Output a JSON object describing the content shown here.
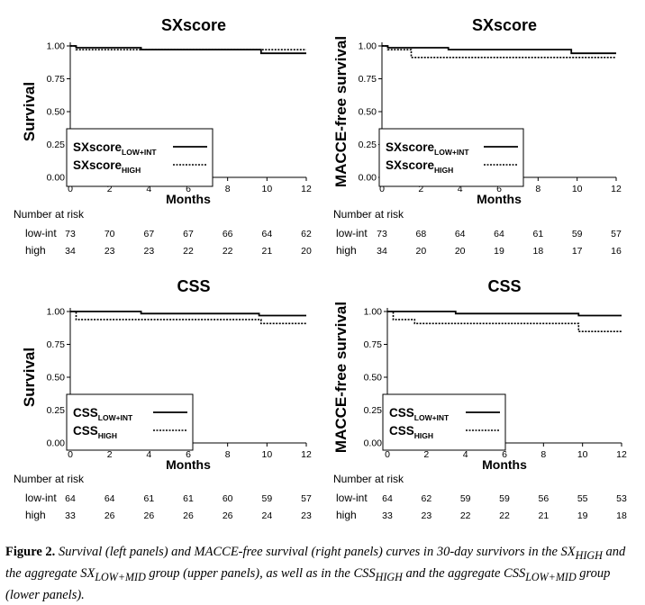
{
  "chart_data": [
    {
      "type": "line",
      "title": "SXscore",
      "ylabel": "Survival",
      "xlabel": "Months",
      "xlim": [
        0,
        12
      ],
      "ylim": [
        0,
        1
      ],
      "xticks": [
        "0",
        "2",
        "4",
        "6",
        "8",
        "10",
        "12"
      ],
      "yticks": [
        "0.00",
        "0.25",
        "0.50",
        "0.75",
        "1.00"
      ],
      "legend_position": "bottom-left",
      "series": [
        {
          "name": "SXscore",
          "sub": "LOW+INT",
          "style": "solid",
          "x": [
            0,
            0.3,
            0.3,
            3.6,
            3.6,
            9.7,
            9.7,
            12
          ],
          "y": [
            1.0,
            1.0,
            0.986,
            0.986,
            0.972,
            0.972,
            0.944,
            0.944
          ]
        },
        {
          "name": "SXscore",
          "sub": "HIGH",
          "style": "dotted",
          "x": [
            0,
            0.3,
            0.3,
            12
          ],
          "y": [
            1.0,
            1.0,
            0.971,
            0.971
          ]
        }
      ],
      "risk_table": {
        "header": "Number at risk",
        "rows": [
          {
            "label": "low-int",
            "values": [
              "73",
              "70",
              "67",
              "67",
              "66",
              "64",
              "62"
            ]
          },
          {
            "label": "high",
            "values": [
              "34",
              "23",
              "23",
              "22",
              "22",
              "21",
              "20"
            ]
          }
        ]
      }
    },
    {
      "type": "line",
      "title": "SXscore",
      "ylabel": "MACCE-free survival",
      "xlabel": "Months",
      "xlim": [
        0,
        12
      ],
      "ylim": [
        0,
        1
      ],
      "xticks": [
        "0",
        "2",
        "4",
        "6",
        "8",
        "10",
        "12"
      ],
      "yticks": [
        "0.00",
        "0.25",
        "0.50",
        "0.75",
        "1.00"
      ],
      "legend_position": "bottom-left",
      "series": [
        {
          "name": "SXscore",
          "sub": "LOW+INT",
          "style": "solid",
          "x": [
            0,
            0.3,
            0.3,
            3.4,
            3.4,
            9.7,
            9.7,
            12
          ],
          "y": [
            1.0,
            1.0,
            0.986,
            0.986,
            0.972,
            0.972,
            0.944,
            0.944
          ]
        },
        {
          "name": "SXscore",
          "sub": "HIGH",
          "style": "dotted",
          "x": [
            0,
            0.3,
            0.3,
            1.5,
            1.5,
            12
          ],
          "y": [
            1.0,
            1.0,
            0.971,
            0.971,
            0.912,
            0.912
          ]
        }
      ],
      "risk_table": {
        "header": "Number at risk",
        "rows": [
          {
            "label": "low-int",
            "values": [
              "73",
              "68",
              "64",
              "64",
              "61",
              "59",
              "57"
            ]
          },
          {
            "label": "high",
            "values": [
              "34",
              "20",
              "20",
              "19",
              "18",
              "17",
              "16"
            ]
          }
        ]
      }
    },
    {
      "type": "line",
      "title": "CSS",
      "ylabel": "Survival",
      "xlabel": "Months",
      "xlim": [
        0,
        12
      ],
      "ylim": [
        0,
        1
      ],
      "xticks": [
        "0",
        "2",
        "4",
        "6",
        "8",
        "10",
        "12"
      ],
      "yticks": [
        "0.00",
        "0.25",
        "0.50",
        "0.75",
        "1.00"
      ],
      "legend_position": "bottom-left",
      "series": [
        {
          "name": "CSS",
          "sub": "LOW+INT",
          "style": "solid",
          "x": [
            0,
            3.6,
            3.6,
            9.6,
            9.6,
            12
          ],
          "y": [
            1.0,
            1.0,
            0.984,
            0.984,
            0.969,
            0.969
          ]
        },
        {
          "name": "CSS",
          "sub": "HIGH",
          "style": "dotted",
          "x": [
            0,
            0.3,
            0.3,
            9.7,
            9.7,
            12
          ],
          "y": [
            1.0,
            1.0,
            0.939,
            0.939,
            0.909,
            0.909
          ]
        }
      ],
      "risk_table": {
        "header": "Number at risk",
        "rows": [
          {
            "label": "low-int",
            "values": [
              "64",
              "64",
              "61",
              "61",
              "60",
              "59",
              "57"
            ]
          },
          {
            "label": "high",
            "values": [
              "33",
              "26",
              "26",
              "26",
              "26",
              "24",
              "23"
            ]
          }
        ]
      }
    },
    {
      "type": "line",
      "title": "CSS",
      "ylabel": "MACCE-free survival",
      "xlabel": "Months",
      "xlim": [
        0,
        12
      ],
      "ylim": [
        0,
        1
      ],
      "xticks": [
        "0",
        "2",
        "4",
        "6",
        "8",
        "10",
        "12"
      ],
      "yticks": [
        "0.00",
        "0.25",
        "0.50",
        "0.75",
        "1.00"
      ],
      "legend_position": "bottom-left",
      "series": [
        {
          "name": "CSS",
          "sub": "LOW+INT",
          "style": "solid",
          "x": [
            0,
            3.5,
            3.5,
            9.8,
            9.8,
            12
          ],
          "y": [
            1.0,
            1.0,
            0.984,
            0.984,
            0.969,
            0.969
          ]
        },
        {
          "name": "CSS",
          "sub": "HIGH",
          "style": "dotted",
          "x": [
            0,
            0.3,
            0.3,
            1.4,
            1.4,
            9.8,
            9.8,
            12
          ],
          "y": [
            1.0,
            1.0,
            0.939,
            0.939,
            0.909,
            0.909,
            0.848,
            0.848
          ]
        }
      ],
      "risk_table": {
        "header": "Number at risk",
        "rows": [
          {
            "label": "low-int",
            "values": [
              "64",
              "62",
              "59",
              "59",
              "56",
              "55",
              "53"
            ]
          },
          {
            "label": "high",
            "values": [
              "33",
              "23",
              "22",
              "22",
              "21",
              "19",
              "18"
            ]
          }
        ]
      }
    }
  ],
  "caption": {
    "label": "Figure 2.",
    "p1": "Survival (left panels) and MACCE-free survival (right panels) curves in 30-day survivors in the SX",
    "s1": "HIGH",
    "p2": " and the aggregate SX",
    "s2": "LOW+MID",
    "p3": " group (upper panels), as well as in the CSS",
    "s3": "HIGH",
    "p4": " and the aggregate CSS",
    "s4": "LOW+MID",
    "p5": " group (lower panels)."
  }
}
